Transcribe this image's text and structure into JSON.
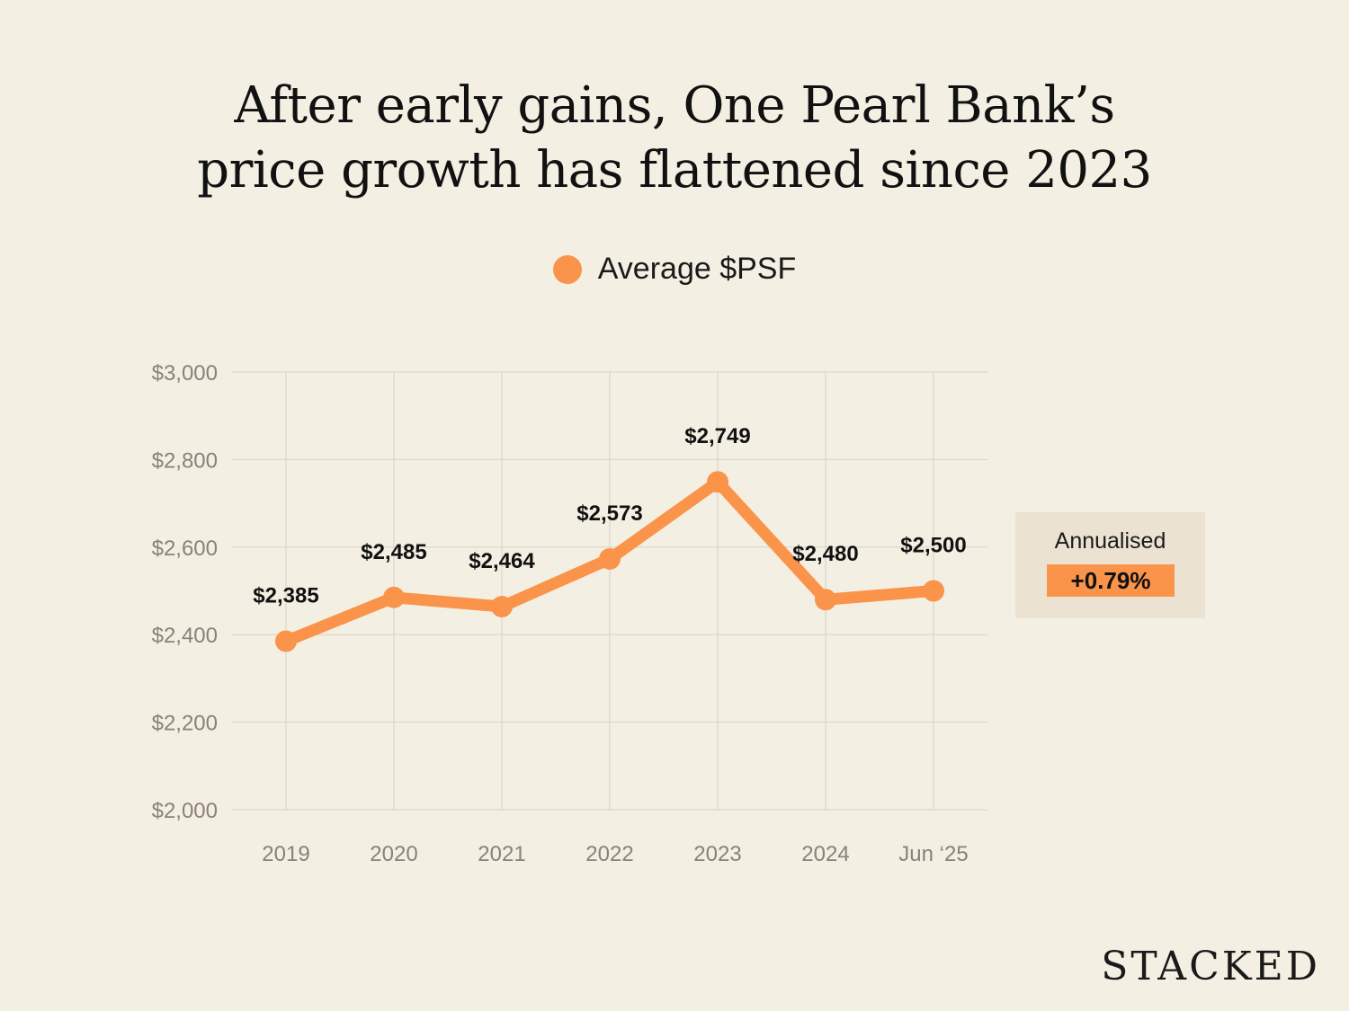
{
  "title_line1": "After early gains, One Pearl Bank’s",
  "title_line2": "price growth has flattened since 2023",
  "legend": {
    "label": "Average $PSF",
    "color": "#fa944a"
  },
  "annotation": {
    "label": "Annualised",
    "value": "+0.79%"
  },
  "brand": "STACKED",
  "colors": {
    "background": "#f4efe3",
    "series": "#fa944a",
    "grid": "#d9d2c4",
    "axis_text": "#8a8178",
    "annotation_bg": "#ebe2d2"
  },
  "chart_data": {
    "type": "line",
    "categories": [
      "2019",
      "2020",
      "2021",
      "2022",
      "2023",
      "2024",
      "Jun ‘25"
    ],
    "series": [
      {
        "name": "Average $PSF",
        "values": [
          2385,
          2485,
          2464,
          2573,
          2749,
          2480,
          2500
        ]
      }
    ],
    "data_labels": [
      "$2,385",
      "$2,485",
      "$2,464",
      "$2,573",
      "$2,749",
      "$2,480",
      "$2,500"
    ],
    "yticks": [
      "$2,000",
      "$2,200",
      "$2,400",
      "$2,600",
      "$2,800",
      "$3,000"
    ],
    "ytick_values": [
      2000,
      2200,
      2400,
      2600,
      2800,
      3000
    ],
    "ylim": [
      2000,
      3000
    ],
    "grid": true,
    "legend_position": "top-center"
  }
}
